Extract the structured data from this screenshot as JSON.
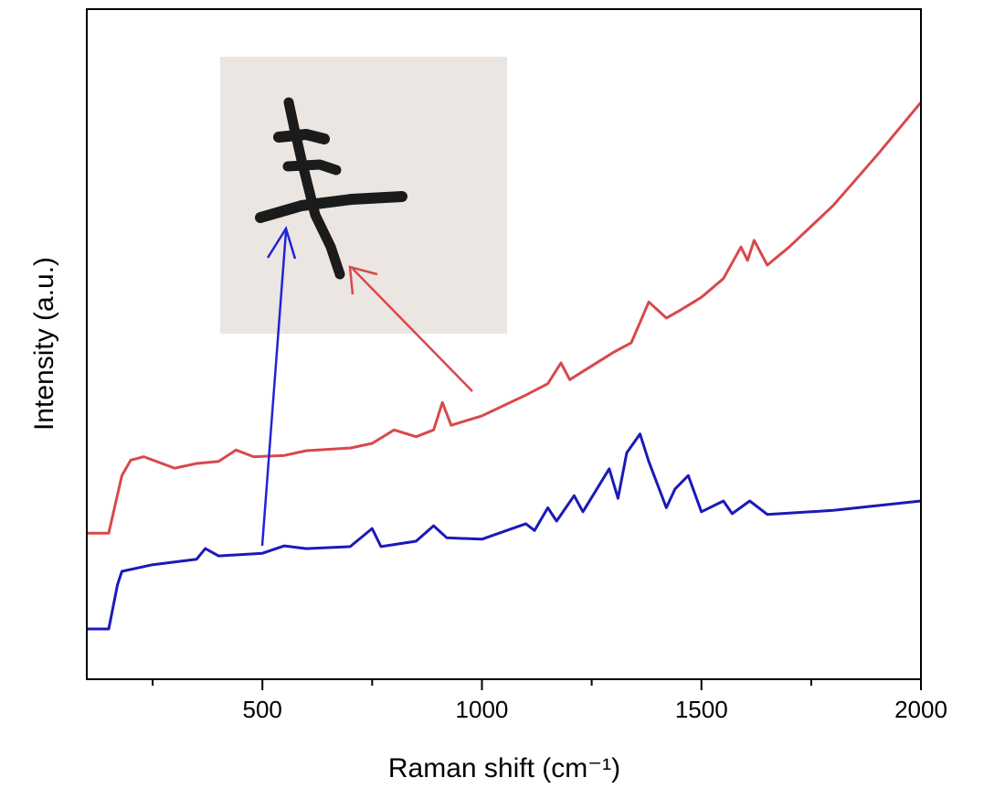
{
  "chart_data": {
    "type": "line",
    "x_label": "Raman shift (cm⁻¹)",
    "y_label": "Intensity (a.u.)",
    "xlim": [
      100,
      2000
    ],
    "xticks": [
      500,
      1000,
      1500,
      2000
    ],
    "xminor": [
      250,
      750,
      1250,
      1750
    ],
    "ylim": [
      0,
      100
    ],
    "series": [
      {
        "color": "#d9484b",
        "x": [
          100,
          150,
          180,
          200,
          230,
          300,
          350,
          400,
          440,
          480,
          550,
          600,
          700,
          750,
          800,
          850,
          890,
          910,
          930,
          1000,
          1100,
          1150,
          1180,
          1200,
          1300,
          1340,
          1380,
          1420,
          1450,
          1500,
          1550,
          1590,
          1605,
          1620,
          1650,
          1700,
          1800,
          1900,
          2000
        ],
        "values": [
          21.8,
          21.8,
          30.4,
          32.7,
          33.2,
          31.5,
          32.2,
          32.5,
          34.2,
          33.2,
          33.4,
          34.1,
          34.5,
          35.2,
          37.2,
          36.2,
          37.2,
          41.3,
          37.9,
          39.3,
          42.4,
          44.1,
          47.2,
          44.7,
          48.8,
          50.2,
          56.3,
          53.9,
          55.0,
          57.0,
          59.8,
          64.5,
          62.5,
          65.5,
          61.8,
          64.5,
          70.7,
          78.2,
          86.1
        ]
      },
      {
        "color": "#1a1ab8",
        "x": [
          100,
          150,
          170,
          180,
          250,
          350,
          370,
          400,
          500,
          550,
          600,
          700,
          750,
          770,
          850,
          890,
          920,
          1000,
          1100,
          1120,
          1150,
          1170,
          1210,
          1230,
          1290,
          1310,
          1330,
          1360,
          1380,
          1420,
          1440,
          1470,
          1500,
          1550,
          1570,
          1610,
          1650,
          1800,
          2000
        ],
        "values": [
          7.5,
          7.5,
          14.1,
          16.1,
          17.1,
          17.9,
          19.5,
          18.4,
          18.8,
          19.9,
          19.5,
          19.8,
          22.5,
          19.8,
          20.6,
          22.9,
          21.1,
          20.9,
          23.2,
          22.2,
          25.6,
          23.6,
          27.4,
          25.0,
          31.4,
          27.0,
          33.8,
          36.6,
          32.5,
          25.6,
          28.4,
          30.4,
          25.0,
          26.6,
          24.7,
          26.6,
          24.6,
          25.2,
          26.6
        ]
      }
    ]
  }
}
